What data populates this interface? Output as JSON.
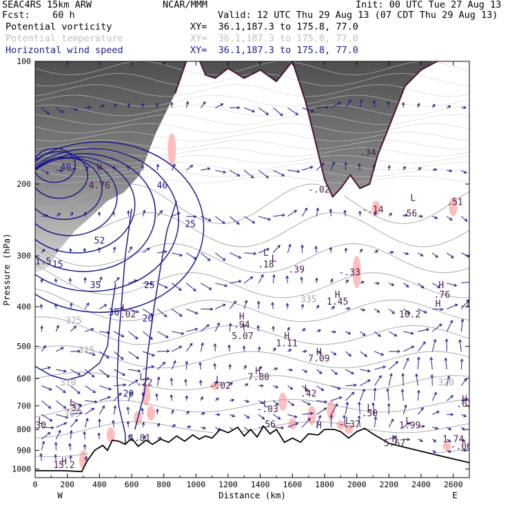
{
  "header": {
    "model": "SEAC4RS 15km ARW",
    "forecast": "Fcst:    60 h",
    "center": "NCAR/MMM",
    "init": "Init: 00 UTC Tue 27 Aug 13",
    "valid": "Valid: 12 UTC Thu 29 Aug 13 (07 CDT Thu 29 Aug 13)"
  },
  "fields": [
    {
      "name": "Potential vorticity",
      "xy": "XY=  36.1,187.3 to 175.8, 77.0",
      "color": "#000000"
    },
    {
      "name": "Potential temperature",
      "xy": "XY=  36.1,187.3 to 175.8, 77.0",
      "color": "#bfbfbf"
    },
    {
      "name": "Horizontal wind speed",
      "xy": "XY=  36.1,187.3 to 175.8, 77.0",
      "color": "#1a1a8c"
    }
  ],
  "chart_data": {
    "type": "cross-section",
    "xlabel": "Distance (km)",
    "ylabel": "Pressure (hPa)",
    "xlim": [
      0,
      2700
    ],
    "ylim": [
      1050,
      100
    ],
    "x_ticks": [
      "0",
      "200",
      "400",
      "600",
      "800",
      "1000",
      "1200",
      "1400",
      "1600",
      "1800",
      "2000",
      "2200",
      "2400",
      "2600"
    ],
    "y_ticks": [
      "100",
      "200",
      "300",
      "400",
      "500",
      "600",
      "700",
      "800",
      "900",
      "1000"
    ],
    "end_labels": [
      "W",
      "E"
    ],
    "colors": {
      "wind": "#1a1a8c",
      "theta": "#a9a9a9",
      "pv": "#ffb6b6",
      "pv_dark": "#555555",
      "terrain": "#000000",
      "tropopause": "#4b0f3c",
      "label": "#4a1a4a"
    },
    "theta_labels": [
      {
        "text": "305",
        "x": 230,
        "p": 745
      },
      {
        "text": "310",
        "x": 205,
        "p": 625
      },
      {
        "text": "315",
        "x": 320,
        "p": 520
      },
      {
        "text": "320",
        "x": 2555,
        "p": 625
      },
      {
        "text": "325",
        "x": 240,
        "p": 440
      },
      {
        "text": "335",
        "x": 1700,
        "p": 390
      }
    ],
    "wind_labels": [
      {
        "text": "40",
        "x": 190,
        "p": 185
      },
      {
        "text": "40",
        "x": 790,
        "p": 205
      },
      {
        "text": "52",
        "x": 400,
        "p": 280
      },
      {
        "text": "35",
        "x": 375,
        "p": 360
      },
      {
        "text": "25",
        "x": 965,
        "p": 255
      },
      {
        "text": "25",
        "x": 710,
        "p": 360
      },
      {
        "text": "20",
        "x": 700,
        "p": 435
      },
      {
        "text": "30",
        "x": 490,
        "p": 420
      },
      {
        "text": "20",
        "x": 580,
        "p": 665
      },
      {
        "text": "15",
        "x": 140,
        "p": 320
      }
    ],
    "hl_markers": [
      {
        "text": "H",
        "x": 400,
        "p": 185
      },
      {
        "text": "L",
        "x": 555,
        "p": 410
      },
      {
        "text": "H",
        "x": 1285,
        "p": 430
      },
      {
        "text": "H",
        "x": 1565,
        "p": 480
      },
      {
        "text": "H",
        "x": 1765,
        "p": 525
      },
      {
        "text": "H",
        "x": 1385,
        "p": 585
      },
      {
        "text": "L",
        "x": 665,
        "p": 605
      },
      {
        "text": "L",
        "x": 1140,
        "p": 615
      },
      {
        "text": "L",
        "x": 1690,
        "p": 645
      },
      {
        "text": "H",
        "x": 2670,
        "p": 685
      },
      {
        "text": "L",
        "x": 230,
        "p": 700
      },
      {
        "text": "L",
        "x": 1435,
        "p": 705
      },
      {
        "text": "L",
        "x": 2080,
        "p": 720
      },
      {
        "text": "L",
        "x": 35,
        "p": 775
      },
      {
        "text": "L",
        "x": 1945,
        "p": 775
      },
      {
        "text": "L",
        "x": 2320,
        "p": 775
      },
      {
        "text": "H",
        "x": 1765,
        "p": 795
      },
      {
        "text": "H",
        "x": 2235,
        "p": 860
      },
      {
        "text": "H",
        "x": 180,
        "p": 975
      },
      {
        "text": "L",
        "x": 1485,
        "p": 310
      },
      {
        "text": "H",
        "x": 1880,
        "p": 380
      },
      {
        "text": "L",
        "x": 1435,
        "p": 300
      },
      {
        "text": "L",
        "x": 2350,
        "p": 220
      },
      {
        "text": "H",
        "x": 2505,
        "p": 400
      },
      {
        "text": "H",
        "x": 2525,
        "p": 360
      }
    ],
    "pv_values": [
      {
        "text": "4.76",
        "x": 400,
        "p": 205
      },
      {
        "text": "-.02",
        "x": 560,
        "p": 425
      },
      {
        "text": ".94",
        "x": 1285,
        "p": 450
      },
      {
        "text": "5.07",
        "x": 1290,
        "p": 480
      },
      {
        "text": "1.11",
        "x": 1565,
        "p": 500
      },
      {
        "text": "7.09",
        "x": 1765,
        "p": 545
      },
      {
        "text": "7.80",
        "x": 1390,
        "p": 605
      },
      {
        "text": ".22",
        "x": 680,
        "p": 625
      },
      {
        "text": "-.02",
        "x": 1150,
        "p": 635
      },
      {
        "text": ".42",
        "x": 1700,
        "p": 665
      },
      {
        "text": ".62",
        "x": 2670,
        "p": 705
      },
      {
        "text": ".32",
        "x": 240,
        "p": 720
      },
      {
        "text": "-.03",
        "x": 1445,
        "p": 725
      },
      {
        "text": ".50",
        "x": 2080,
        "p": 742
      },
      {
        "text": "30",
        "x": 35,
        "p": 795
      },
      {
        "text": "1.99",
        "x": 2330,
        "p": 795
      },
      {
        "text": ".56",
        "x": 1445,
        "p": 790
      },
      {
        "text": "-.37",
        "x": 1955,
        "p": 790
      },
      {
        "text": "1.81",
        "x": 650,
        "p": 855
      },
      {
        "text": "1.74",
        "x": 2600,
        "p": 860
      },
      {
        "text": "-.06",
        "x": 2650,
        "p": 895
      },
      {
        "text": "5.67",
        "x": 2235,
        "p": 880
      },
      {
        "text": "15.2",
        "x": 180,
        "p": 995
      },
      {
        "text": "1.45",
        "x": 1880,
        "p": 395
      },
      {
        "text": "10.2",
        "x": 2330,
        "p": 425
      },
      {
        "text": ".18",
        "x": 1435,
        "p": 320
      },
      {
        "text": ".39",
        "x": 1625,
        "p": 330
      },
      {
        "text": "-.33",
        "x": 1955,
        "p": 335
      },
      {
        "text": "-.02",
        "x": 1765,
        "p": 210
      },
      {
        "text": "-.14",
        "x": 2100,
        "p": 235
      },
      {
        "text": ".56",
        "x": 2325,
        "p": 240
      },
      {
        "text": ".34",
        "x": 2070,
        "p": 170
      },
      {
        "text": ".51",
        "x": 2610,
        "p": 225
      },
      {
        "text": ".76",
        "x": 2530,
        "p": 380
      },
      {
        "text": ".13",
        "x": 2690,
        "p": 400
      },
      {
        "text": "1.5",
        "x": 50,
        "p": 315
      }
    ],
    "terrain": [
      [
        0,
        1010
      ],
      [
        180,
        1010
      ],
      [
        290,
        1015
      ],
      [
        320,
        960
      ],
      [
        370,
        900
      ],
      [
        420,
        875
      ],
      [
        450,
        900
      ],
      [
        480,
        850
      ],
      [
        520,
        855
      ],
      [
        560,
        870
      ],
      [
        600,
        840
      ],
      [
        640,
        880
      ],
      [
        690,
        850
      ],
      [
        730,
        870
      ],
      [
        780,
        845
      ],
      [
        830,
        860
      ],
      [
        880,
        830
      ],
      [
        930,
        855
      ],
      [
        980,
        825
      ],
      [
        1020,
        845
      ],
      [
        1060,
        830
      ],
      [
        1100,
        840
      ],
      [
        1150,
        800
      ],
      [
        1200,
        815
      ],
      [
        1260,
        790
      ],
      [
        1300,
        830
      ],
      [
        1340,
        800
      ],
      [
        1380,
        835
      ],
      [
        1420,
        785
      ],
      [
        1460,
        820
      ],
      [
        1500,
        800
      ],
      [
        1550,
        860
      ],
      [
        1600,
        840
      ],
      [
        1650,
        860
      ],
      [
        1700,
        820
      ],
      [
        1760,
        825
      ],
      [
        1800,
        800
      ],
      [
        1860,
        800
      ],
      [
        1900,
        810
      ],
      [
        1950,
        840
      ],
      [
        2000,
        810
      ],
      [
        2050,
        795
      ],
      [
        2100,
        820
      ],
      [
        2200,
        865
      ],
      [
        2300,
        885
      ],
      [
        2400,
        905
      ],
      [
        2500,
        925
      ],
      [
        2600,
        945
      ],
      [
        2700,
        965
      ]
    ],
    "tropopause": [
      [
        870,
        120
      ],
      [
        940,
        100
      ],
      [
        1000,
        95
      ],
      [
        1060,
        108
      ],
      [
        1120,
        110
      ],
      [
        1200,
        104
      ],
      [
        1300,
        110
      ],
      [
        1400,
        105
      ],
      [
        1500,
        112
      ],
      [
        1600,
        100
      ],
      [
        1680,
        125
      ],
      [
        1730,
        150
      ],
      [
        1800,
        195
      ],
      [
        1850,
        215
      ],
      [
        1900,
        205
      ],
      [
        1960,
        190
      ],
      [
        2020,
        205
      ],
      [
        2080,
        200
      ],
      [
        2130,
        170
      ],
      [
        2200,
        145
      ],
      [
        2300,
        115
      ],
      [
        2400,
        105
      ],
      [
        2500,
        100
      ],
      [
        2600,
        98
      ],
      [
        2700,
        95
      ]
    ]
  }
}
